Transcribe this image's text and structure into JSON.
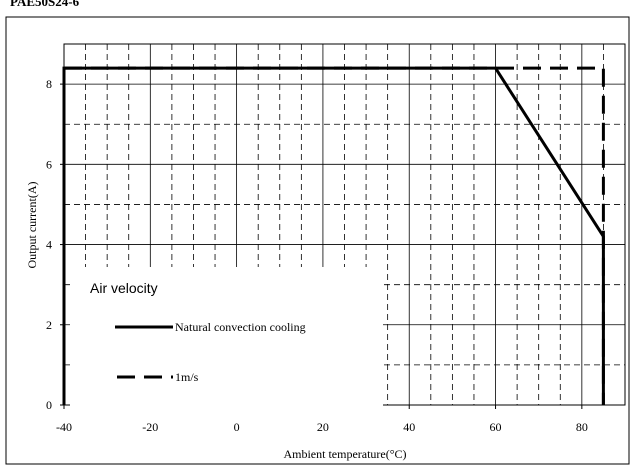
{
  "header": {
    "part_code": "PAE50S24-6"
  },
  "chart_data": {
    "type": "line",
    "title": "",
    "xlabel": "Ambient temperature(°C)",
    "ylabel": "Output current(A)",
    "xlim": [
      -40,
      90
    ],
    "ylim": [
      0,
      9
    ],
    "x_ticks": [
      -40,
      -20,
      0,
      20,
      40,
      60,
      80
    ],
    "y_ticks": [
      0,
      2,
      4,
      6,
      8
    ],
    "grid": true,
    "legend": {
      "title": "Air velocity",
      "placement": "bottom-left",
      "entries": [
        {
          "label": "Natural convection cooling",
          "style": "solid"
        },
        {
          "label": "1m/s",
          "style": "dashed"
        }
      ]
    },
    "series": [
      {
        "name": "Natural convection cooling",
        "style": "solid",
        "points": [
          [
            -40,
            0
          ],
          [
            -40,
            8.4
          ],
          [
            60,
            8.4
          ],
          [
            85,
            4.2
          ],
          [
            85,
            0
          ]
        ]
      },
      {
        "name": "1m/s",
        "style": "dashed",
        "points": [
          [
            -40,
            8.4
          ],
          [
            85,
            8.4
          ],
          [
            85,
            0
          ]
        ]
      }
    ]
  }
}
